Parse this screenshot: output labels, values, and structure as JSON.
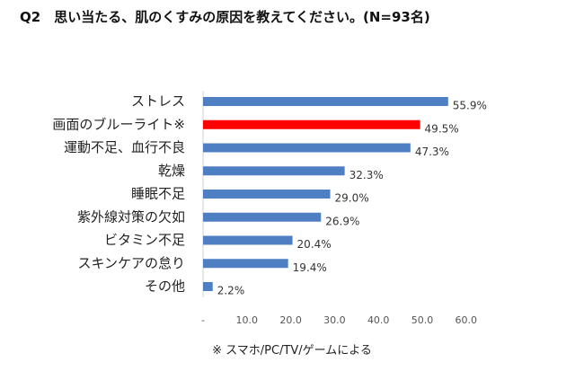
{
  "question": "Q2　思い当たる、肌のくすみの原因を教えてください。(N=93名)",
  "footnote": "※ スマホ/PC/TV/ゲームによる",
  "colors": {
    "normal": "#4f7fc3",
    "highlight": "#ff0000"
  },
  "chart_data": {
    "type": "bar",
    "orientation": "horizontal",
    "categories": [
      "ストレス",
      "画面のブルーライト※",
      "運動不足、血行不良",
      "乾燥",
      "睡眠不足",
      "紫外線対策の欠如",
      "ビタミン不足",
      "スキンケアの怠り",
      "その他"
    ],
    "values": [
      55.9,
      49.5,
      47.3,
      32.3,
      29.0,
      26.9,
      20.4,
      19.4,
      2.2
    ],
    "value_labels": [
      "55.9%",
      "49.5%",
      "47.3%",
      "32.3%",
      "29.0%",
      "26.9%",
      "20.4%",
      "19.4%",
      "2.2%"
    ],
    "highlight_index": 1,
    "xlim": [
      0,
      60
    ],
    "x_ticks": [
      "-",
      "10.0",
      "20.0",
      "30.0",
      "40.0",
      "50.0",
      "60.0"
    ],
    "grid": false,
    "legend": "none"
  }
}
